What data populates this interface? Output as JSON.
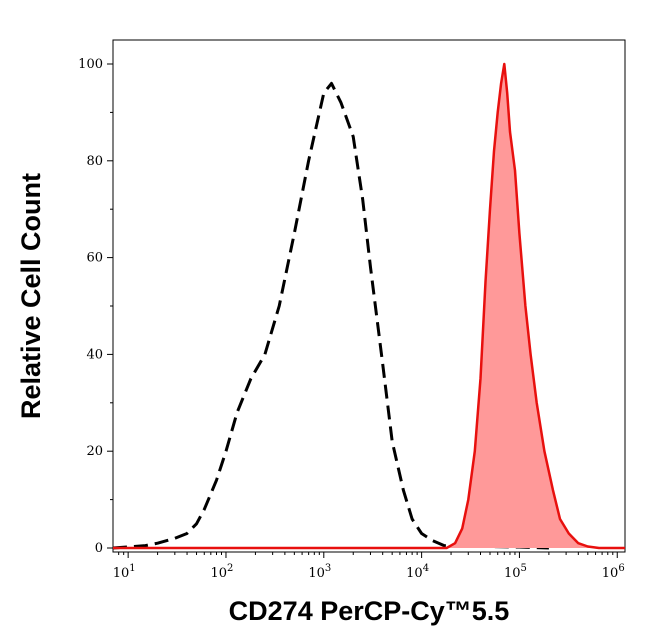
{
  "chart_data": {
    "type": "area",
    "xlabel": "CD274 PerCP-Cy™5.5",
    "ylabel": "Relative Cell Count",
    "x_scale": "log",
    "xlim": [
      7,
      1200000
    ],
    "ylim": [
      0,
      100
    ],
    "grid": false,
    "legend": "none",
    "x_ticks": [
      {
        "value": 10,
        "base": "10",
        "exp": "1"
      },
      {
        "value": 100,
        "base": "10",
        "exp": "2"
      },
      {
        "value": 1000,
        "base": "10",
        "exp": "3"
      },
      {
        "value": 10000,
        "base": "10",
        "exp": "4"
      },
      {
        "value": 100000,
        "base": "10",
        "exp": "5"
      },
      {
        "value": 1000000,
        "base": "10",
        "exp": "6"
      }
    ],
    "y_ticks": [
      {
        "value": 0,
        "label": "0"
      },
      {
        "value": 20,
        "label": "20"
      },
      {
        "value": 40,
        "label": "40"
      },
      {
        "value": 60,
        "label": "60"
      },
      {
        "value": 80,
        "label": "80"
      },
      {
        "value": 100,
        "label": "100"
      }
    ],
    "series": [
      {
        "style": "dashed",
        "color": "#000000",
        "fill": "none",
        "x": [
          7,
          15,
          20,
          30,
          40,
          50,
          60,
          80,
          100,
          130,
          180,
          250,
          350,
          500,
          700,
          1000,
          1200,
          1500,
          2000,
          2500,
          3000,
          4000,
          5000,
          6500,
          8000,
          10000,
          13000,
          17000,
          22000,
          30000,
          50000,
          100000,
          200000
        ],
        "y": [
          0,
          0.5,
          1,
          2,
          3,
          5,
          8,
          14,
          20,
          28,
          35,
          40,
          50,
          65,
          80,
          94,
          96,
          92,
          85,
          72,
          58,
          38,
          22,
          12,
          6,
          3,
          1.5,
          0.5,
          0.3,
          0.5,
          0.3,
          0.2,
          0
        ]
      },
      {
        "style": "solid",
        "color": "#e8100e",
        "fill": "#ff9999",
        "x": [
          7,
          18000,
          22000,
          26000,
          30000,
          35000,
          40000,
          45000,
          50000,
          55000,
          60000,
          65000,
          70000,
          75000,
          80000,
          90000,
          100000,
          115000,
          130000,
          150000,
          180000,
          220000,
          260000,
          320000,
          400000,
          500000,
          650000,
          1200000
        ],
        "y": [
          0,
          0,
          1,
          4,
          10,
          20,
          35,
          55,
          70,
          82,
          90,
          96,
          100,
          94,
          86,
          78,
          65,
          50,
          40,
          30,
          20,
          12,
          6,
          3,
          1,
          0.3,
          0,
          0
        ]
      }
    ]
  }
}
